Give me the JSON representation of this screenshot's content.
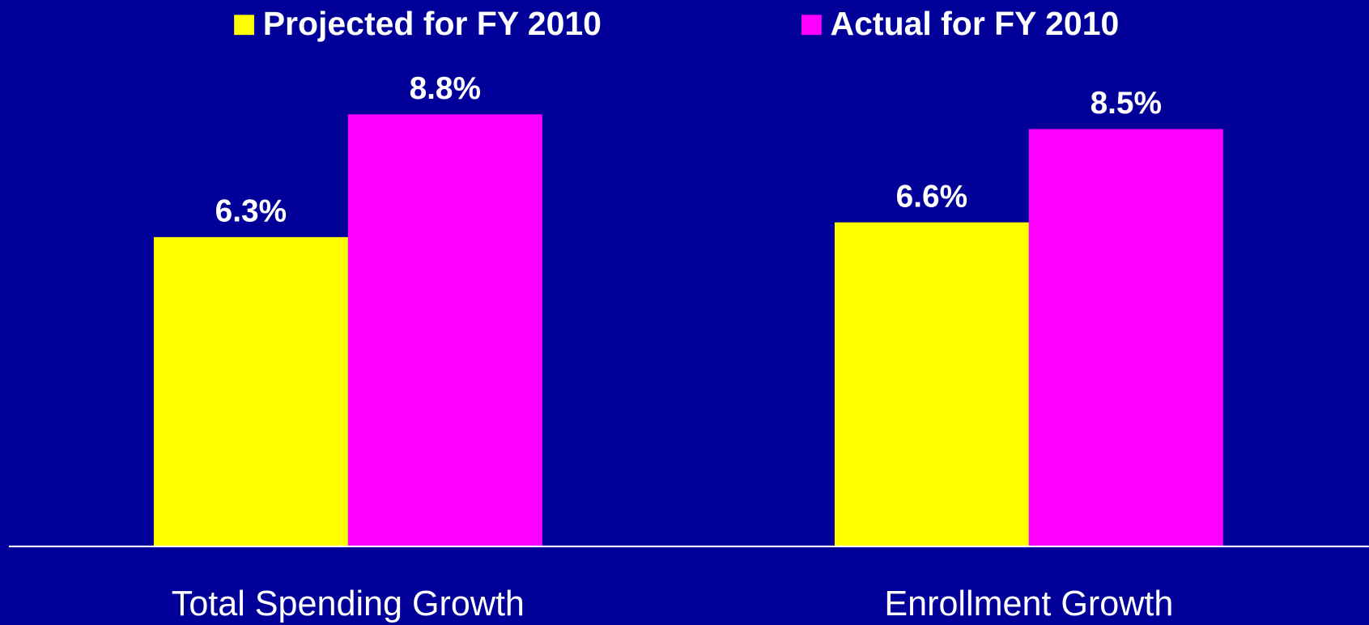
{
  "chart_data": {
    "type": "bar",
    "categories": [
      "Total Spending Growth",
      "Enrollment Growth"
    ],
    "series": [
      {
        "name": "Projected for FY 2010",
        "color": "#ffff00",
        "values": [
          6.3,
          6.6
        ],
        "value_labels": [
          "6.3%",
          "6.6%"
        ]
      },
      {
        "name": "Actual for FY 2010",
        "color": "#ff00ff",
        "values": [
          8.8,
          8.5
        ],
        "value_labels": [
          "8.8%",
          "8.5%"
        ]
      }
    ],
    "legend": "top"
  }
}
